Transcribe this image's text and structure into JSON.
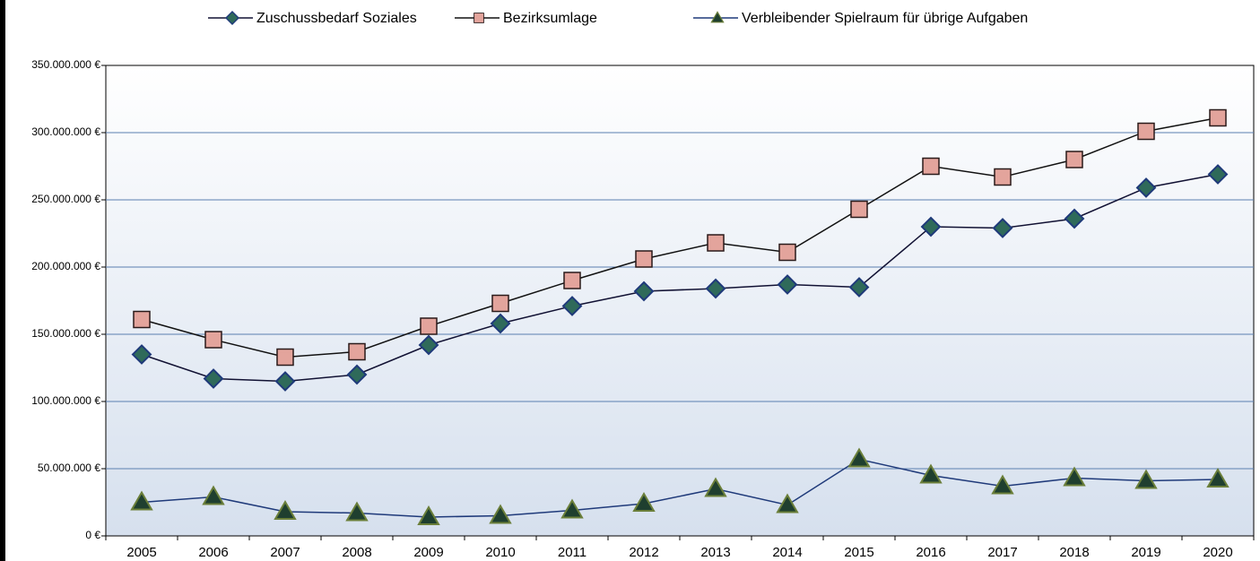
{
  "chart_data": {
    "type": "line",
    "categories": [
      "2005",
      "2006",
      "2007",
      "2008",
      "2009",
      "2010",
      "2011",
      "2012",
      "2013",
      "2014",
      "2015",
      "2016",
      "2017",
      "2018",
      "2019",
      "2020"
    ],
    "series": [
      {
        "name": "Zuschussbedarf Soziales",
        "color": "#1f3a7a",
        "values": [
          135000000,
          117000000,
          115000000,
          120000000,
          142000000,
          158000000,
          171000000,
          182000000,
          184000000,
          187000000,
          185000000,
          230000000,
          229000000,
          236000000,
          259000000,
          269000000
        ]
      },
      {
        "name": "Bezirksumlage",
        "color": "#e3a49c",
        "values": [
          161000000,
          146000000,
          133000000,
          137000000,
          156000000,
          173000000,
          190000000,
          206000000,
          218000000,
          211000000,
          243000000,
          275000000,
          267000000,
          280000000,
          301000000,
          311000000
        ]
      },
      {
        "name": "Verbleibender Spielraum für übrige Aufgaben",
        "color": "#6b7f3a",
        "values": [
          25000000,
          29000000,
          18000000,
          17000000,
          14000000,
          15000000,
          19000000,
          24000000,
          35000000,
          23000000,
          57000000,
          45000000,
          37000000,
          43000000,
          41000000,
          42000000
        ]
      }
    ],
    "ylim": [
      0,
      350000000
    ],
    "yticks": [
      {
        "value": 0,
        "label": "0 €"
      },
      {
        "value": 50000000,
        "label": "50.000.000 €"
      },
      {
        "value": 100000000,
        "label": "100.000.000 €"
      },
      {
        "value": 150000000,
        "label": "150.000.000 €"
      },
      {
        "value": 200000000,
        "label": "200.000.000 €"
      },
      {
        "value": 250000000,
        "label": "250.000.000 €"
      },
      {
        "value": 300000000,
        "label": "300.000.000 €"
      },
      {
        "value": 350000000,
        "label": "350.000.000 €"
      }
    ],
    "grid": true,
    "legend": "top"
  }
}
